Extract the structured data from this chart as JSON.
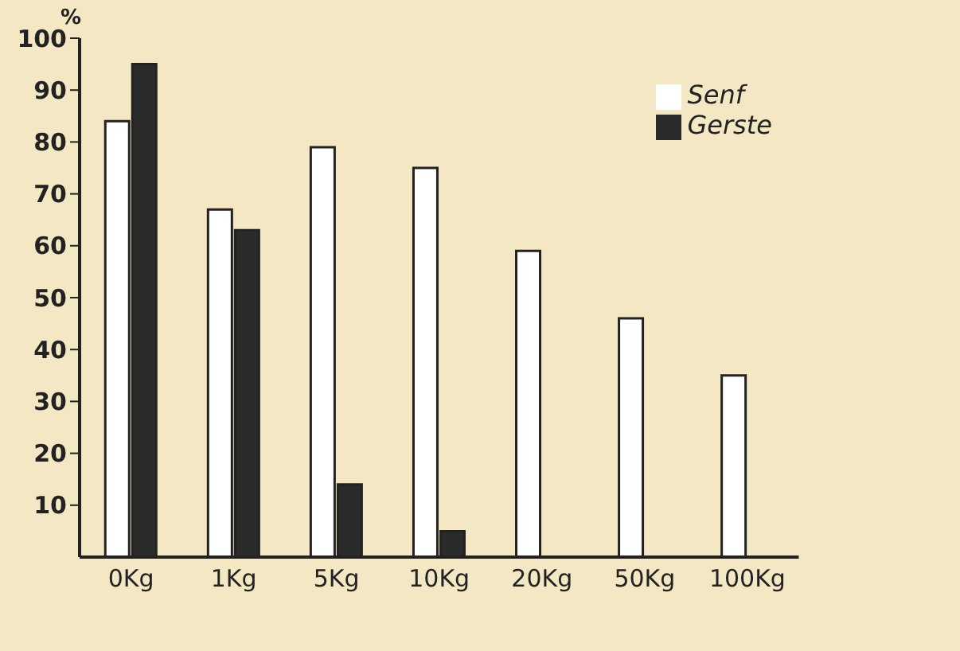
{
  "chart_data": {
    "type": "bar",
    "ylabel": "%",
    "categories": [
      "0Kg",
      "1Kg",
      "5Kg",
      "10Kg",
      "20Kg",
      "50Kg",
      "100Kg"
    ],
    "series": [
      {
        "name": "Senf",
        "color": "#ffffff",
        "values": [
          84,
          67,
          79,
          75,
          59,
          46,
          35
        ]
      },
      {
        "name": "Gerste",
        "color": "#2b2b2b",
        "values": [
          95,
          63,
          14,
          5,
          0,
          0,
          0
        ]
      }
    ],
    "ylim": [
      0,
      100
    ],
    "yticks": [
      10,
      20,
      30,
      40,
      50,
      60,
      70,
      80,
      90,
      100
    ],
    "grid": false,
    "legend": "top right"
  }
}
